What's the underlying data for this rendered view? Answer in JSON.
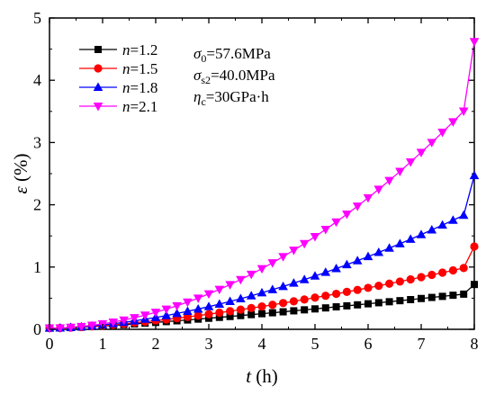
{
  "chart_data": {
    "type": "line",
    "xlabel": {
      "symbol": "t",
      "unit": " (h)"
    },
    "ylabel": {
      "symbol": "ε",
      "unit": " (%)"
    },
    "xlim": [
      0,
      8
    ],
    "ylim": [
      0,
      5
    ],
    "xticks": [
      "0",
      "1",
      "2",
      "3",
      "4",
      "5",
      "6",
      "7",
      "8"
    ],
    "yticks": [
      "0",
      "1",
      "2",
      "3",
      "4",
      "5"
    ],
    "grid": false,
    "legend_position": "top-left",
    "series": [
      {
        "name": "n=1.2",
        "label_symbol": "n",
        "label_value": "=1.2",
        "n": 1.2,
        "color": "#000000",
        "marker": "square",
        "x": [
          0,
          0.2,
          0.4,
          0.6,
          0.8,
          1,
          1.2,
          1.4,
          1.6,
          1.8,
          2,
          2.2,
          2.4,
          2.6,
          2.8,
          3,
          3.2,
          3.4,
          3.6,
          3.8,
          4,
          4.2,
          4.4,
          4.6,
          4.8,
          5,
          5.2,
          5.4,
          5.6,
          5.8,
          6,
          6.2,
          6.4,
          6.6,
          6.8,
          7,
          7.2,
          7.4,
          7.6,
          7.8,
          8
        ],
        "y": [
          0.02,
          0.022,
          0.028,
          0.035,
          0.044,
          0.053,
          0.064,
          0.075,
          0.087,
          0.099,
          0.111,
          0.124,
          0.137,
          0.15,
          0.164,
          0.178,
          0.192,
          0.206,
          0.221,
          0.236,
          0.251,
          0.266,
          0.281,
          0.297,
          0.313,
          0.328,
          0.344,
          0.361,
          0.377,
          0.393,
          0.41,
          0.427,
          0.443,
          0.46,
          0.477,
          0.495,
          0.512,
          0.529,
          0.547,
          0.565,
          0.72
        ]
      },
      {
        "name": "n=1.5",
        "label_symbol": "n",
        "label_value": "=1.5",
        "n": 1.5,
        "color": "#ff0000",
        "marker": "circle",
        "x": [
          0,
          0.2,
          0.4,
          0.6,
          0.8,
          1,
          1.2,
          1.4,
          1.6,
          1.8,
          2,
          2.2,
          2.4,
          2.6,
          2.8,
          3,
          3.2,
          3.4,
          3.6,
          3.8,
          4,
          4.2,
          4.4,
          4.6,
          4.8,
          5,
          5.2,
          5.4,
          5.6,
          5.8,
          6,
          6.2,
          6.4,
          6.6,
          6.8,
          7,
          7.2,
          7.4,
          7.6,
          7.8,
          8
        ],
        "y": [
          0.02,
          0.022,
          0.028,
          0.037,
          0.047,
          0.059,
          0.073,
          0.088,
          0.104,
          0.121,
          0.139,
          0.158,
          0.178,
          0.199,
          0.221,
          0.243,
          0.267,
          0.291,
          0.316,
          0.341,
          0.367,
          0.394,
          0.422,
          0.45,
          0.479,
          0.509,
          0.539,
          0.57,
          0.601,
          0.633,
          0.666,
          0.699,
          0.733,
          0.767,
          0.802,
          0.838,
          0.874,
          0.91,
          0.947,
          0.985,
          1.33
        ]
      },
      {
        "name": "n=1.8",
        "label_symbol": "n",
        "label_value": "=1.8",
        "n": 1.8,
        "color": "#0000ff",
        "marker": "triangle-up",
        "x": [
          0,
          0.2,
          0.4,
          0.6,
          0.8,
          1,
          1.2,
          1.4,
          1.6,
          1.8,
          2,
          2.2,
          2.4,
          2.6,
          2.8,
          3,
          3.2,
          3.4,
          3.6,
          3.8,
          4,
          4.2,
          4.4,
          4.6,
          4.8,
          5,
          5.2,
          5.4,
          5.6,
          5.8,
          6,
          6.2,
          6.4,
          6.6,
          6.8,
          7,
          7.2,
          7.4,
          7.6,
          7.8,
          8
        ],
        "y": [
          0.02,
          0.022,
          0.03,
          0.04,
          0.054,
          0.071,
          0.09,
          0.112,
          0.136,
          0.162,
          0.19,
          0.221,
          0.254,
          0.289,
          0.326,
          0.364,
          0.405,
          0.448,
          0.492,
          0.539,
          0.587,
          0.637,
          0.689,
          0.743,
          0.798,
          0.856,
          0.915,
          0.976,
          1.038,
          1.102,
          1.168,
          1.235,
          1.304,
          1.375,
          1.447,
          1.521,
          1.597,
          1.674,
          1.752,
          1.832,
          2.47
        ]
      },
      {
        "name": "n=2.1",
        "label_symbol": "n",
        "label_value": "=2.1",
        "n": 2.1,
        "color": "#ff00ff",
        "marker": "triangle-down",
        "x": [
          0,
          0.2,
          0.4,
          0.6,
          0.8,
          1,
          1.2,
          1.4,
          1.6,
          1.8,
          2,
          2.2,
          2.4,
          2.6,
          2.8,
          3,
          3.2,
          3.4,
          3.6,
          3.8,
          4,
          4.2,
          4.4,
          4.6,
          4.8,
          5,
          5.2,
          5.4,
          5.6,
          5.8,
          6,
          6.2,
          6.4,
          6.6,
          6.8,
          7,
          7.2,
          7.4,
          7.6,
          7.8,
          8
        ],
        "y": [
          0.02,
          0.022,
          0.032,
          0.046,
          0.065,
          0.088,
          0.116,
          0.149,
          0.186,
          0.227,
          0.273,
          0.323,
          0.378,
          0.437,
          0.501,
          0.569,
          0.641,
          0.718,
          0.799,
          0.884,
          0.974,
          1.068,
          1.167,
          1.27,
          1.377,
          1.488,
          1.604,
          1.724,
          1.849,
          1.978,
          2.111,
          2.249,
          2.39,
          2.537,
          2.687,
          2.842,
          3.001,
          3.164,
          3.332,
          3.504,
          4.62
        ]
      }
    ],
    "annotations": [
      {
        "symbol": "σ",
        "sub": "0",
        "text": "=57.6MPa"
      },
      {
        "symbol": "σ",
        "sub": "s2",
        "text": "=40.0MPa"
      },
      {
        "symbol": "η",
        "sub": "c",
        "text": "=30GPa·h"
      }
    ]
  }
}
